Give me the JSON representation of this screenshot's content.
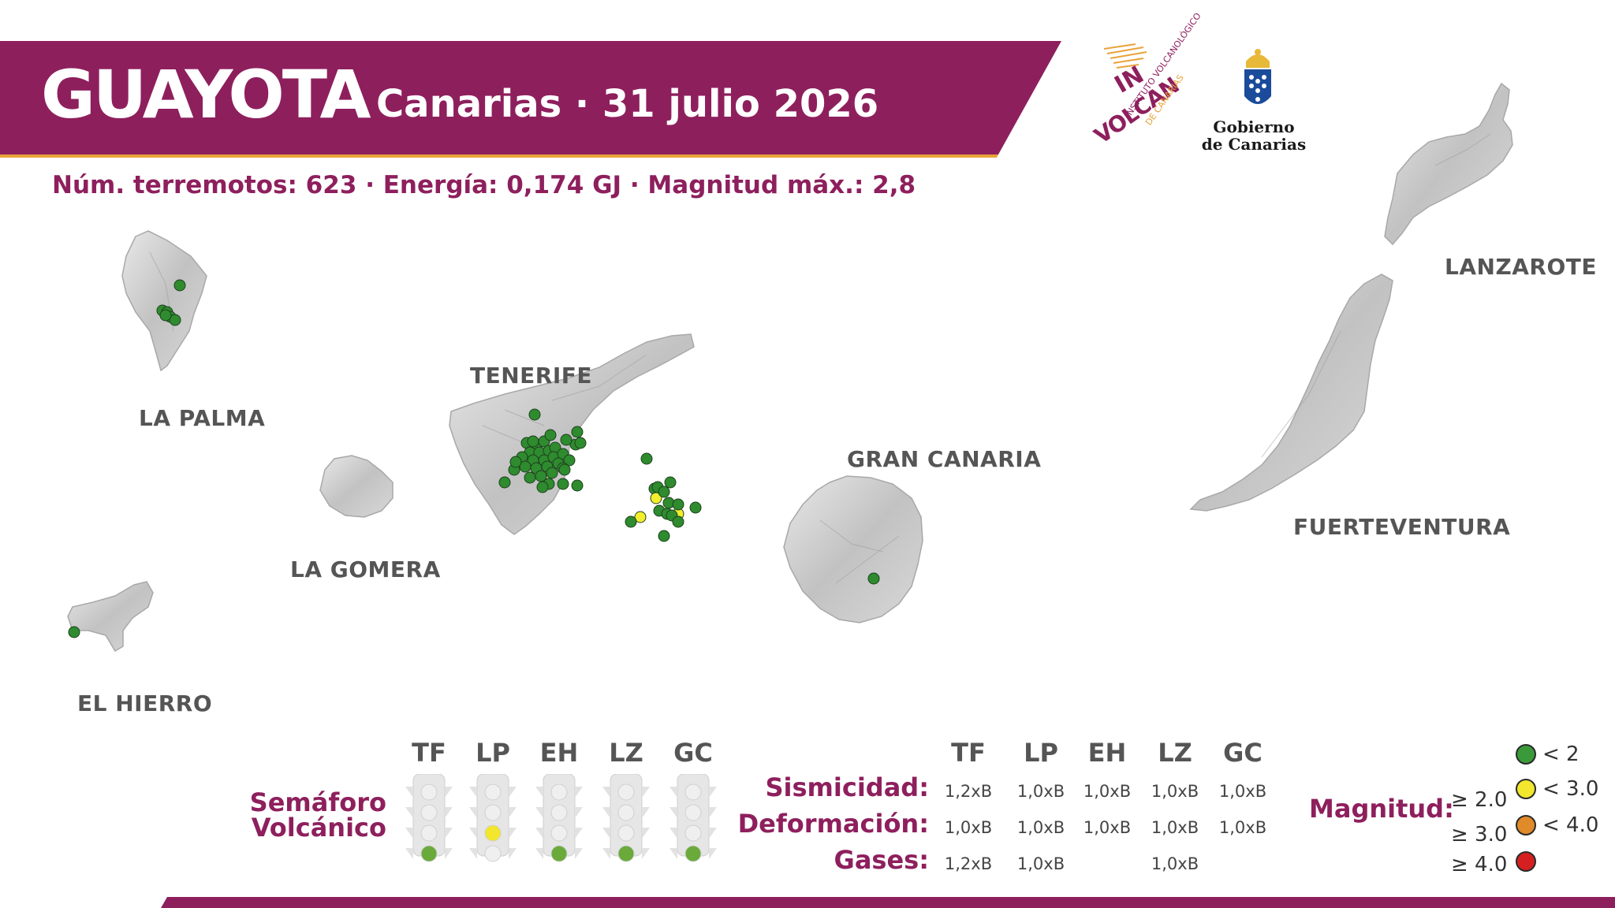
{
  "header": {
    "title": "GUAYOTA",
    "subtitle": "· Canarias · 31 julio 2026",
    "stats": "Núm. terremotos: 623 · Energía: 0,174 GJ · Magnitud máx.: 2,8"
  },
  "logos": {
    "involcan_line1": "IN",
    "involcan_line2": "VOLCAN",
    "involcan_line3": "INSTITUTO VOLCANOLÓGICO",
    "involcan_line4": "DE CANARIAS",
    "gobierno_line1": "Gobierno",
    "gobierno_line2": "de Canarias"
  },
  "islands": {
    "la_palma": "LA PALMA",
    "el_hierro": "EL HIERRO",
    "la_gomera": "LA GOMERA",
    "tenerife": "TENERIFE",
    "gran_canaria": "GRAN CANARIA",
    "fuerteventura": "FUERTEVENTURA",
    "lanzarote": "LANZAROTE"
  },
  "semaforo": {
    "title_line1": "Semáforo",
    "title_line2": "Volcánico",
    "islands": [
      {
        "code": "TF",
        "active_light": "green"
      },
      {
        "code": "LP",
        "active_light": "yellow"
      },
      {
        "code": "EH",
        "active_light": "green"
      },
      {
        "code": "LZ",
        "active_light": "green"
      },
      {
        "code": "GC",
        "active_light": "green"
      }
    ]
  },
  "indicators": {
    "columns": [
      "TF",
      "LP",
      "EH",
      "LZ",
      "GC"
    ],
    "rows": [
      {
        "label": "Sismicidad:",
        "values": [
          "1,2xB",
          "1,0xB",
          "1,0xB",
          "1,0xB",
          "1,0xB"
        ]
      },
      {
        "label": "Deformación:",
        "values": [
          "1,0xB",
          "1,0xB",
          "1,0xB",
          "1,0xB",
          "1,0xB"
        ]
      },
      {
        "label": "Gases:",
        "values": [
          "1,2xB",
          "1,0xB",
          "",
          "1,0xB",
          ""
        ]
      }
    ]
  },
  "magnitude_legend": {
    "title": "Magnitud:",
    "items": [
      {
        "lower": "",
        "upper": "< 2",
        "color": "#3a9a3a"
      },
      {
        "lower": "≥ 2.0",
        "upper": "< 3.0",
        "color": "#f2e62e"
      },
      {
        "lower": "≥ 3.0",
        "upper": "< 4.0",
        "color": "#e08a2a"
      },
      {
        "lower": "≥ 4.0",
        "upper": "",
        "color": "#d42020"
      }
    ]
  },
  "colors": {
    "brand": "#8e1f5d",
    "accent": "#e8a33a",
    "island": "#c8c8c8",
    "quake_low": "#2e8b2e",
    "quake_mid": "#f2ee2e"
  }
}
